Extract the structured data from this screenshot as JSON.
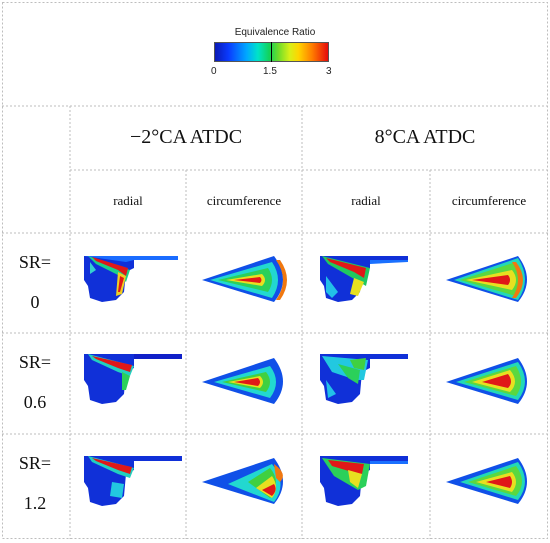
{
  "legend": {
    "title": "Equivalence Ratio",
    "ticks": [
      "0",
      "1.5",
      "3"
    ]
  },
  "columns": {
    "group_left": "−2°CA ATDC",
    "group_right": "8°CA ATDC",
    "sub": [
      "radial",
      "circumference",
      "radial",
      "circumference"
    ]
  },
  "rows": [
    {
      "line1": "SR=",
      "line2": "0"
    },
    {
      "line1": "SR=",
      "line2": "0.6"
    },
    {
      "line1": "SR=",
      "line2": "1.2"
    }
  ]
}
